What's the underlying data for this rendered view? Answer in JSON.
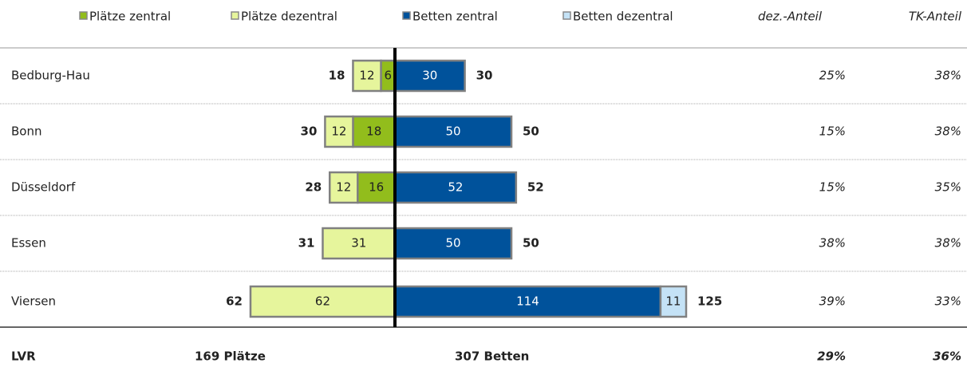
{
  "chart_data": {
    "type": "diverging-bar",
    "categories": [
      "Bedburg-Hau",
      "Bonn",
      "Düsseldorf",
      "Essen",
      "Viersen"
    ],
    "series": [
      {
        "name": "Plätze zentral",
        "color": "#92bd1c",
        "values": [
          6,
          18,
          16,
          null,
          null
        ]
      },
      {
        "name": "Plätze dezentral",
        "color": "#e6f59c",
        "values": [
          12,
          12,
          12,
          31,
          62
        ]
      },
      {
        "name": "Betten zentral",
        "color": "#00529b",
        "values": [
          30,
          50,
          52,
          50,
          114
        ]
      },
      {
        "name": "Betten dezentral",
        "color": "#c4e2f6",
        "values": [
          null,
          null,
          null,
          null,
          11
        ]
      }
    ],
    "plaetze_totals": [
      18,
      30,
      28,
      31,
      62
    ],
    "betten_totals": [
      30,
      50,
      52,
      50,
      125
    ],
    "columns": [
      "dez.-Anteil",
      "TK-Anteil"
    ],
    "dez_anteil": [
      "25%",
      "15%",
      "15%",
      "38%",
      "39%"
    ],
    "tk_anteil": [
      "38%",
      "38%",
      "35%",
      "38%",
      "33%"
    ],
    "footer": {
      "label": "LVR",
      "plaetze": "169 Plätze",
      "betten": "307 Betten",
      "dez_anteil": "29%",
      "tk_anteil": "36%"
    }
  }
}
